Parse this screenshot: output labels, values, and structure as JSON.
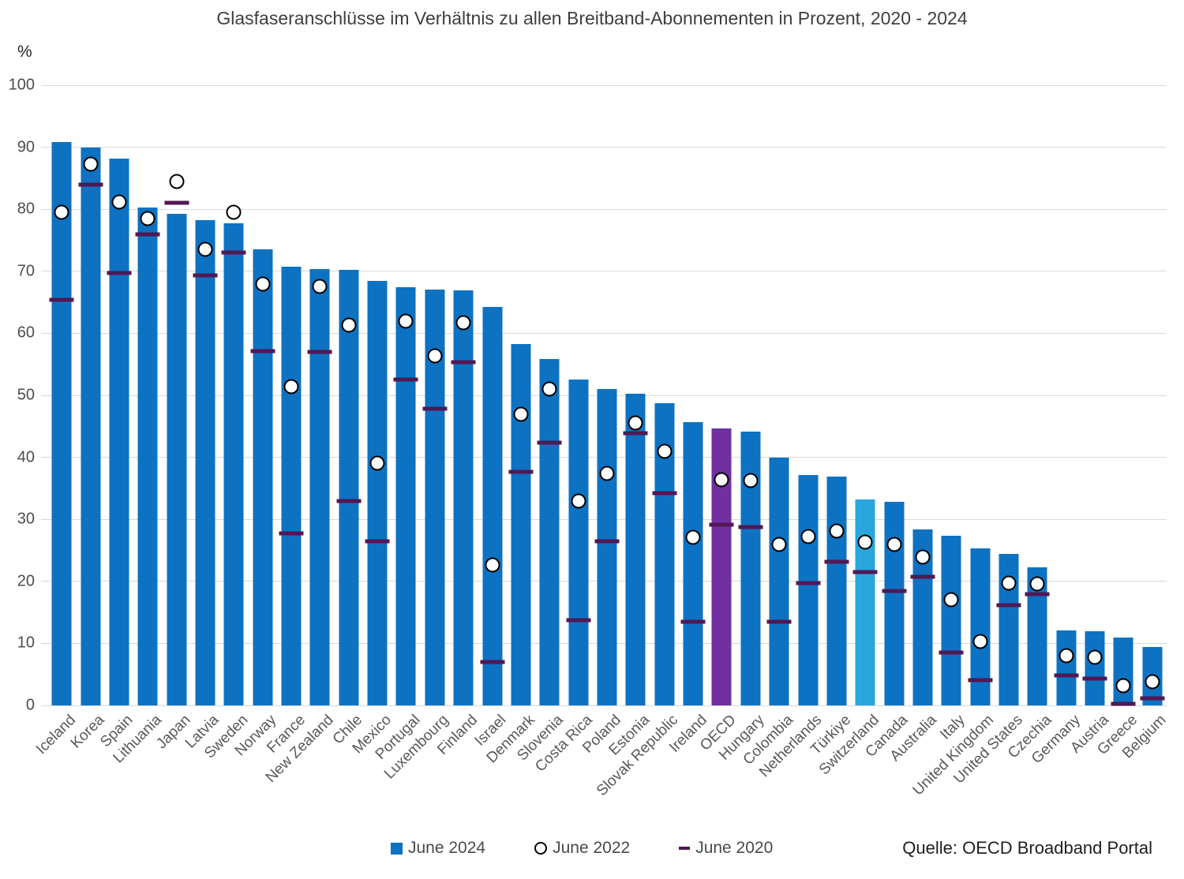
{
  "title": "Glasfaseranschlüsse im Verhältnis zu allen Breitband-Abonnementen in Prozent, 2020 - 2024",
  "y_axis": {
    "unit": "%",
    "ticks": [
      100,
      90,
      80,
      70,
      60,
      50,
      40,
      30,
      20,
      10,
      0
    ]
  },
  "legend": {
    "items": [
      {
        "label": "June 2024",
        "marker": "square"
      },
      {
        "label": "June 2022",
        "marker": "circle"
      },
      {
        "label": "June 2020",
        "marker": "dash"
      }
    ],
    "source": "Quelle: OECD Broadband Portal"
  },
  "colors": {
    "bar": "#0d72c2",
    "bar_oecd": "#7030a0",
    "bar_switzerland": "#29a6de",
    "marker_2020": "#521853",
    "circle_fill": "#ffffff",
    "circle_stroke": "#000000",
    "gridline": "#d9d9d9"
  },
  "chart_data": {
    "type": "bar",
    "title": "Glasfaseranschlüsse im Verhältnis zu allen Breitband-Abonnementen in Prozent, 2020 - 2024",
    "ylabel": "%",
    "ylim": [
      0,
      100
    ],
    "grid": "horizontal",
    "legend_position": "bottom",
    "categories": [
      "Iceland",
      "Korea",
      "Spain",
      "Lithuania",
      "Japan",
      "Latvia",
      "Sweden",
      "Norway",
      "France",
      "New Zealand",
      "Chile",
      "Mexico",
      "Portugal",
      "Luxembourg",
      "Finland",
      "Israel",
      "Denmark",
      "Slovenia",
      "Costa Rica",
      "Poland",
      "Estonia",
      "Slovak Republic",
      "Ireland",
      "OECD",
      "Hungary",
      "Colombia",
      "Netherlands",
      "Türkiye",
      "Switzerland",
      "Canada",
      "Australia",
      "Italy",
      "United Kingdom",
      "United States",
      "Czechia",
      "Germany",
      "Austria",
      "Greece",
      "Belgium"
    ],
    "series": [
      {
        "name": "June 2024",
        "style": "bar",
        "values": [
          90.9,
          90.0,
          88.2,
          80.3,
          79.3,
          78.2,
          77.8,
          73.6,
          70.8,
          70.4,
          70.2,
          68.5,
          67.4,
          67.1,
          66.9,
          64.3,
          58.3,
          55.9,
          52.5,
          51.0,
          50.2,
          48.7,
          45.7,
          44.6,
          44.2,
          40.0,
          37.2,
          36.9,
          33.2,
          32.8,
          28.4,
          27.4,
          25.3,
          24.4,
          22.3,
          12.1,
          11.9,
          10.9,
          9.4
        ]
      },
      {
        "name": "June 2022",
        "style": "circle",
        "values": [
          79.5,
          87.3,
          81.2,
          78.5,
          84.5,
          73.5,
          79.5,
          67.9,
          51.4,
          67.5,
          61.3,
          39.0,
          61.9,
          56.3,
          61.7,
          22.6,
          47.0,
          51.0,
          32.9,
          37.4,
          45.6,
          41.0,
          27.1,
          36.4,
          36.3,
          25.9,
          27.2,
          28.1,
          26.4,
          26.0,
          23.9,
          17.0,
          10.3,
          19.7,
          19.6,
          8.0,
          7.7,
          3.2,
          3.8
        ]
      },
      {
        "name": "June 2020",
        "style": "dash",
        "values": [
          65.4,
          84.0,
          69.7,
          76.0,
          81.1,
          69.4,
          73.0,
          57.1,
          27.8,
          57.0,
          32.9,
          26.5,
          52.5,
          47.8,
          55.3,
          7.0,
          37.6,
          42.4,
          13.8,
          26.5,
          43.9,
          34.2,
          13.5,
          29.2,
          28.8,
          13.5,
          19.7,
          23.2,
          21.5,
          18.4,
          20.8,
          8.5,
          4.1,
          16.1,
          17.9,
          4.8,
          4.3,
          0.3,
          1.2
        ]
      }
    ],
    "highlighted_bars": {
      "OECD": "#7030a0",
      "Switzerland": "#29a6de"
    }
  }
}
